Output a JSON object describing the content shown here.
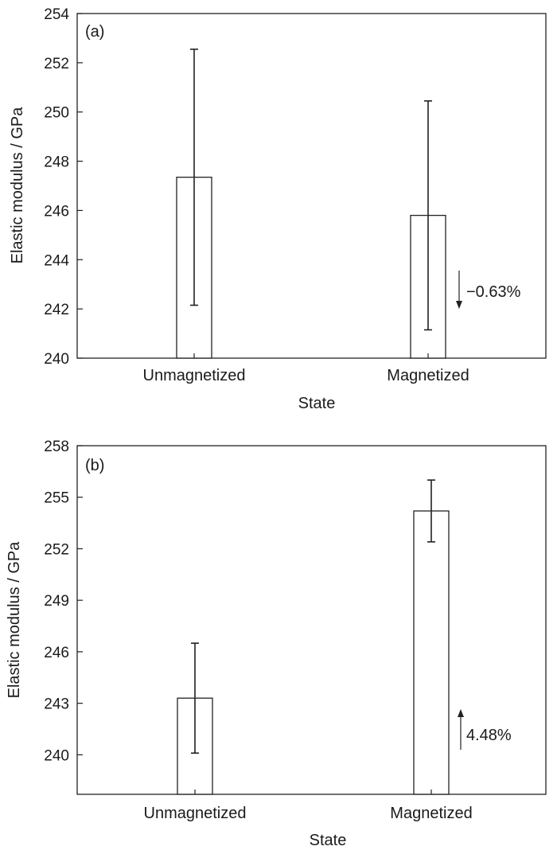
{
  "chart_data": [
    {
      "type": "bar",
      "panel_label": "(a)",
      "categories": [
        "Unmagnetized",
        "Magnetized"
      ],
      "values": [
        247.35,
        245.8
      ],
      "error_low": [
        242.15,
        241.15
      ],
      "error_high": [
        252.55,
        250.45
      ],
      "ylim": [
        240,
        254
      ],
      "yticks": [
        "240",
        "242",
        "244",
        "246",
        "248",
        "250",
        "252",
        "254"
      ],
      "xlabel": "State",
      "ylabel": "Elastic modulus / GPa",
      "annotation": {
        "text": "−0.63%",
        "direction": "down",
        "category": "Magnetized"
      },
      "grid": false,
      "legend": "none"
    },
    {
      "type": "bar",
      "panel_label": "(b)",
      "categories": [
        "Unmagnetized",
        "Magnetized"
      ],
      "values": [
        243.3,
        254.2
      ],
      "error_low": [
        240.1,
        252.4
      ],
      "error_high": [
        246.5,
        256.0
      ],
      "ylim": [
        237.7,
        258
      ],
      "yticks": [
        "240",
        "243",
        "246",
        "249",
        "252",
        "255",
        "258"
      ],
      "xlabel": "State",
      "ylabel": "Elastic modulus / GPa",
      "annotation": {
        "text": "4.48%",
        "direction": "up",
        "category": "Magnetized"
      },
      "grid": false,
      "legend": "none"
    }
  ]
}
